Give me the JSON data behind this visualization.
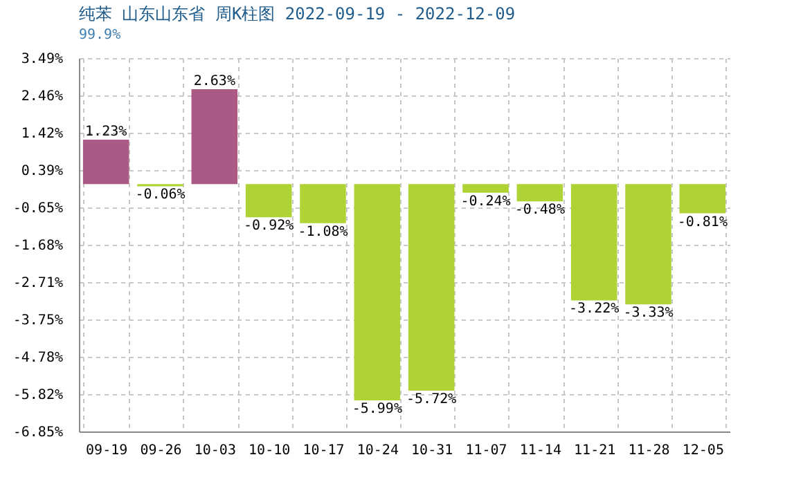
{
  "chart_data": {
    "type": "bar",
    "title": "纯苯 山东山东省 周K柱图 2022-09-19 - 2022-12-09",
    "subtitle": "99.9%",
    "categories": [
      "09-19",
      "09-26",
      "10-03",
      "10-10",
      "10-17",
      "10-24",
      "10-31",
      "11-07",
      "11-14",
      "11-21",
      "11-28",
      "12-05"
    ],
    "values": [
      1.23,
      -0.06,
      2.63,
      -0.92,
      -1.08,
      -5.99,
      -5.72,
      -0.24,
      -0.48,
      -3.22,
      -3.33,
      -0.81
    ],
    "colors": [
      "#ab5a85",
      "#afd334",
      "#ab5a85",
      "#afd334",
      "#afd334",
      "#afd334",
      "#afd334",
      "#afd334",
      "#afd334",
      "#afd334",
      "#afd334",
      "#afd334"
    ],
    "value_labels": [
      "1.23%",
      "-0.06%",
      "2.63%",
      "-0.92%",
      "-1.08%",
      "-5.99%",
      "-5.72%",
      "-0.24%",
      "-0.48%",
      "-3.22%",
      "-3.33%",
      "-0.81%"
    ],
    "ylim": [
      -6.85,
      3.49
    ],
    "yticks": [
      {
        "value": -6.85,
        "label": "-6.85%"
      },
      {
        "value": -5.82,
        "label": "-5.82%"
      },
      {
        "value": -4.78,
        "label": "-4.78%"
      },
      {
        "value": -3.75,
        "label": "-3.75%"
      },
      {
        "value": -2.71,
        "label": "-2.71%"
      },
      {
        "value": -1.68,
        "label": "-1.68%"
      },
      {
        "value": -0.65,
        "label": "-0.65%"
      },
      {
        "value": 0.39,
        "label": "0.39%"
      },
      {
        "value": 1.42,
        "label": "1.42%"
      },
      {
        "value": 2.46,
        "label": "2.46%"
      },
      {
        "value": 3.49,
        "label": "3.49%"
      }
    ],
    "grid": true
  }
}
